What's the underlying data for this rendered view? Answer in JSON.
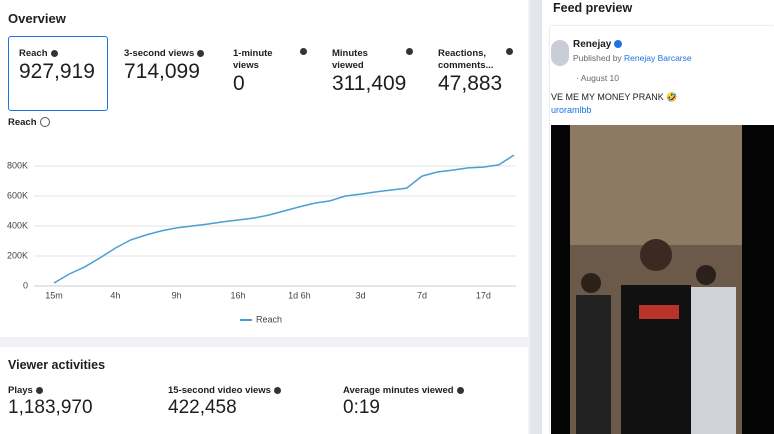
{
  "overview": {
    "title": "Overview",
    "metrics": [
      {
        "label": "Reach",
        "value": "927,919"
      },
      {
        "label": "3-second views",
        "value": "714,099"
      },
      {
        "label": "1-minute views",
        "value": "0"
      },
      {
        "label": "Minutes viewed",
        "value": "311,409"
      },
      {
        "label": "Reactions, comments...",
        "value": "47,883"
      }
    ]
  },
  "chart_data": {
    "type": "line",
    "title": "Reach",
    "categories": [
      "15m",
      null,
      null,
      null,
      "4h",
      null,
      null,
      null,
      "9h",
      null,
      null,
      null,
      "16h",
      null,
      null,
      null,
      "1d 6h",
      null,
      null,
      null,
      "3d",
      null,
      null,
      null,
      "7d",
      null,
      null,
      null,
      "17d",
      null,
      null
    ],
    "series": [
      {
        "name": "Reach",
        "color": "#4a9fd5",
        "values": [
          20000,
          80000,
          127000,
          187000,
          253000,
          307000,
          340000,
          367000,
          387000,
          400000,
          413000,
          427000,
          440000,
          453000,
          473000,
          500000,
          527000,
          553000,
          567000,
          600000,
          613000,
          627000,
          640000,
          653000,
          733000,
          760000,
          773000,
          787000,
          793000,
          807000,
          873000
        ]
      }
    ],
    "ylim": [
      0,
      900000
    ],
    "yticks": [
      0,
      {
        "value": 200000,
        "label": "200K"
      },
      {
        "value": 400000,
        "label": "400K"
      },
      {
        "value": 600000,
        "label": "600K"
      },
      {
        "value": 800000,
        "label": "800K"
      }
    ],
    "grid": true,
    "legend": "bottom"
  },
  "viewer_activities": {
    "title": "Viewer activities",
    "metrics": [
      {
        "label": "Plays",
        "value": "1,183,970"
      },
      {
        "label": "15-second video views",
        "value": "422,458"
      },
      {
        "label": "Average minutes viewed",
        "value": "0:19"
      }
    ]
  },
  "feed_preview": {
    "title": "Feed preview",
    "author": "Renejay",
    "published_by": "Published by",
    "publisher": "Renejay Barcarse",
    "date": "August 10",
    "caption": "VE ME MY MONEY PRANK 🤣",
    "tag": "uroramlbb"
  }
}
